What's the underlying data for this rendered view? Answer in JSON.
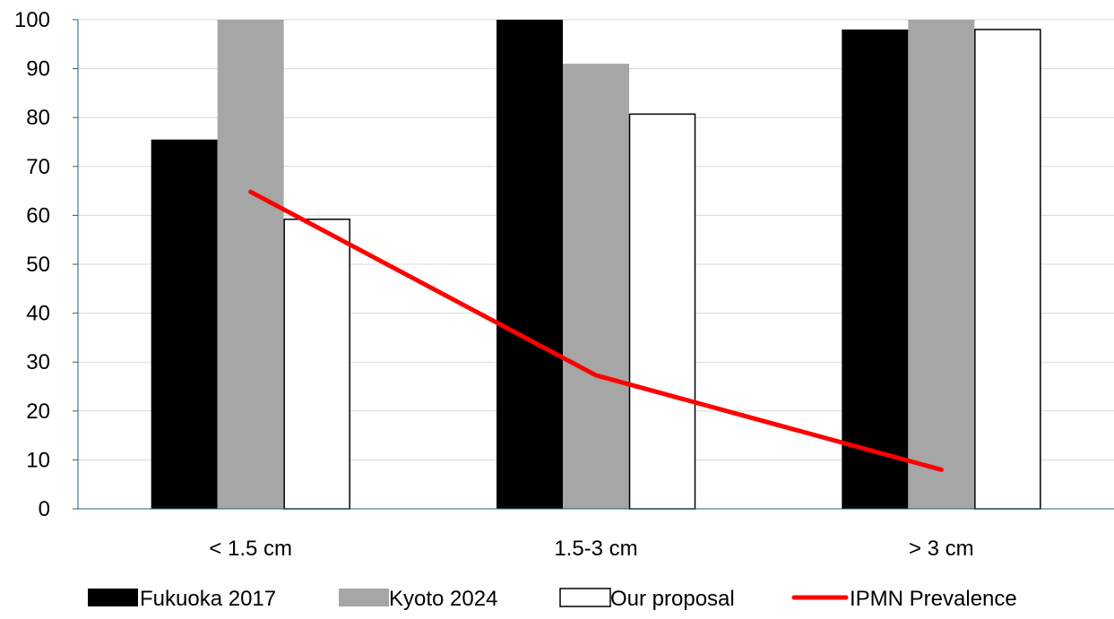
{
  "chart_data": {
    "type": "bar",
    "categories": [
      "< 1.5 cm",
      "1.5-3 cm",
      "> 3 cm"
    ],
    "series": [
      {
        "name": "Fukuoka 2017",
        "type": "bar",
        "values": [
          75.5,
          100,
          98
        ],
        "color": "#000000"
      },
      {
        "name": "Kyoto 2024",
        "type": "bar",
        "values": [
          100,
          91,
          100
        ],
        "color": "#a6a6a6"
      },
      {
        "name": "Our proposal",
        "type": "bar",
        "values": [
          59.2,
          80.7,
          98
        ],
        "color": "#ffffff"
      },
      {
        "name": "IPMN Prevalence",
        "type": "line",
        "values": [
          64.8,
          27.3,
          8
        ],
        "color": "#ff0000"
      }
    ],
    "ylim": [
      0,
      100
    ],
    "yticks": [
      0,
      10,
      20,
      30,
      40,
      50,
      60,
      70,
      80,
      90,
      100
    ],
    "grid": true,
    "legend_position": "bottom",
    "title": "",
    "xlabel": "",
    "ylabel": ""
  }
}
